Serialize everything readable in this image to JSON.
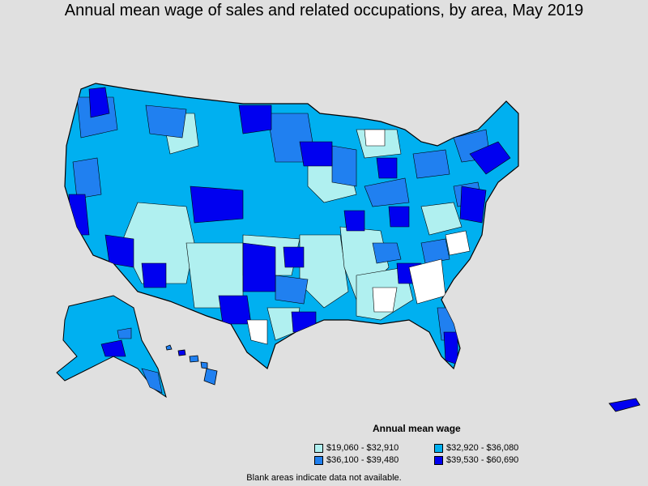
{
  "title": "Annual mean wage of sales and related occupations, by area, May 2019",
  "legend": {
    "title": "Annual mean wage",
    "items": [
      {
        "label": "$19,060 - $32,910",
        "color": "#b0f0f0"
      },
      {
        "label": "$32,920 - $36,080",
        "color": "#00b0f0"
      },
      {
        "label": "$36,100 - $39,480",
        "color": "#2080f0"
      },
      {
        "label": "$39,530 - $60,690",
        "color": "#0000f0"
      }
    ]
  },
  "footnote": "Blank areas indicate data not available.",
  "colors": {
    "background": "#e0e0e0",
    "no_data": "#ffffff",
    "border": "#000000"
  }
}
